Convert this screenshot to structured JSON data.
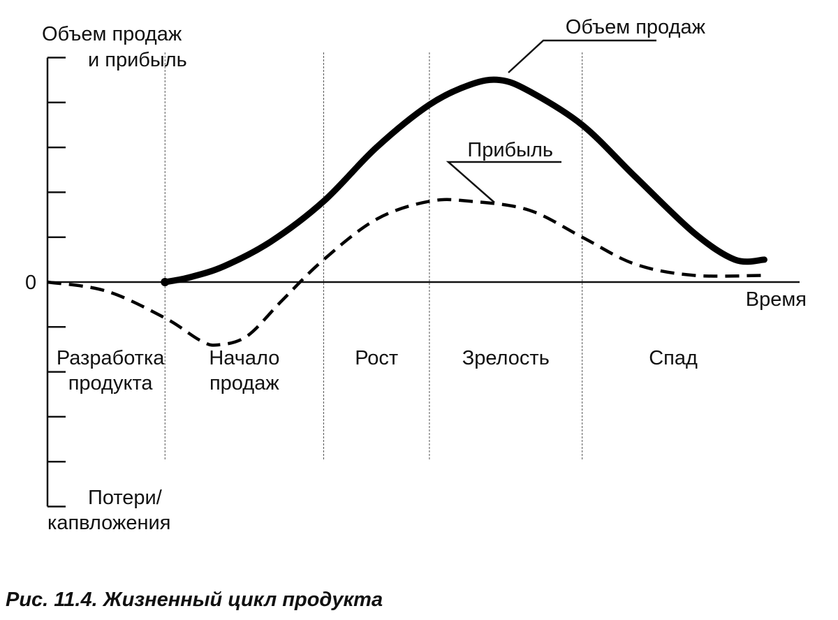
{
  "chart_data": {
    "type": "line",
    "caption": "Рис. 11.4. Жизненный цикл продукта",
    "ylabel_lines": [
      "Объем продаж",
      "и прибыль"
    ],
    "ylabel_bottom_lines": [
      "Потери/",
      "капвложения"
    ],
    "xlabel": "Время",
    "zero_label": "0",
    "stages": [
      {
        "lines": [
          "Разработка",
          "продукта"
        ]
      },
      {
        "lines": [
          "Начало",
          "продаж"
        ]
      },
      {
        "lines": [
          "Рост"
        ]
      },
      {
        "lines": [
          "Зрелость"
        ]
      },
      {
        "lines": [
          "Спад"
        ]
      }
    ],
    "stage_boundaries": [
      1.0,
      2.35,
      3.25,
      4.55
    ],
    "x_range": [
      0,
      6.4
    ],
    "y_range": [
      -5,
      5
    ],
    "y_ticks": [
      -5,
      -4,
      -3,
      -2,
      -1,
      0,
      1,
      2,
      3,
      4,
      5
    ],
    "series": [
      {
        "name": "Объем продаж",
        "style": "solid",
        "color": "#000000",
        "x": [
          1.0,
          1.2,
          1.5,
          1.9,
          2.35,
          2.8,
          3.25,
          3.6,
          3.85,
          4.1,
          4.55,
          5.0,
          5.5,
          5.85,
          6.1
        ],
        "y": [
          0.0,
          0.1,
          0.35,
          0.9,
          1.8,
          3.0,
          3.95,
          4.4,
          4.5,
          4.25,
          3.5,
          2.35,
          1.1,
          0.5,
          0.5
        ]
      },
      {
        "name": "Прибыль",
        "style": "dashed",
        "color": "#000000",
        "x": [
          0.0,
          0.5,
          1.0,
          1.3,
          1.45,
          1.7,
          2.0,
          2.35,
          2.8,
          3.25,
          3.6,
          4.1,
          4.55,
          5.0,
          5.5,
          6.1
        ],
        "y": [
          0.0,
          -0.2,
          -0.8,
          -1.3,
          -1.4,
          -1.2,
          -0.4,
          0.5,
          1.4,
          1.8,
          1.8,
          1.6,
          1.0,
          0.4,
          0.15,
          0.15
        ]
      }
    ],
    "annotations": [
      {
        "text": "Объем продаж",
        "series": "Объем продаж"
      },
      {
        "text": "Прибыль",
        "series": "Прибыль"
      }
    ],
    "grid": false,
    "legend": "none"
  }
}
